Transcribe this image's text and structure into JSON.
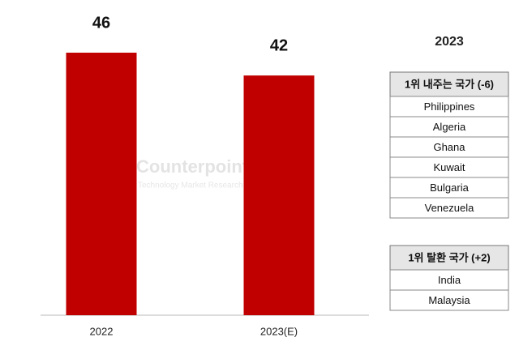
{
  "chart_data": {
    "type": "bar",
    "categories": [
      "2022",
      "2023(E)"
    ],
    "values": [
      46,
      42
    ],
    "color": "#c00000",
    "watermark": {
      "brand": "Counterpoint",
      "tagline": "Technology Market Research"
    }
  },
  "side_panel": {
    "title": "2023",
    "tables": [
      {
        "header": "1위 내주는 국가 (-6)",
        "rows": [
          "Philippines",
          "Algeria",
          "Ghana",
          "Kuwait",
          "Bulgaria",
          "Venezuela"
        ]
      },
      {
        "header": "1위 탈환 국가 (+2)",
        "rows": [
          "India",
          "Malaysia"
        ]
      }
    ]
  }
}
